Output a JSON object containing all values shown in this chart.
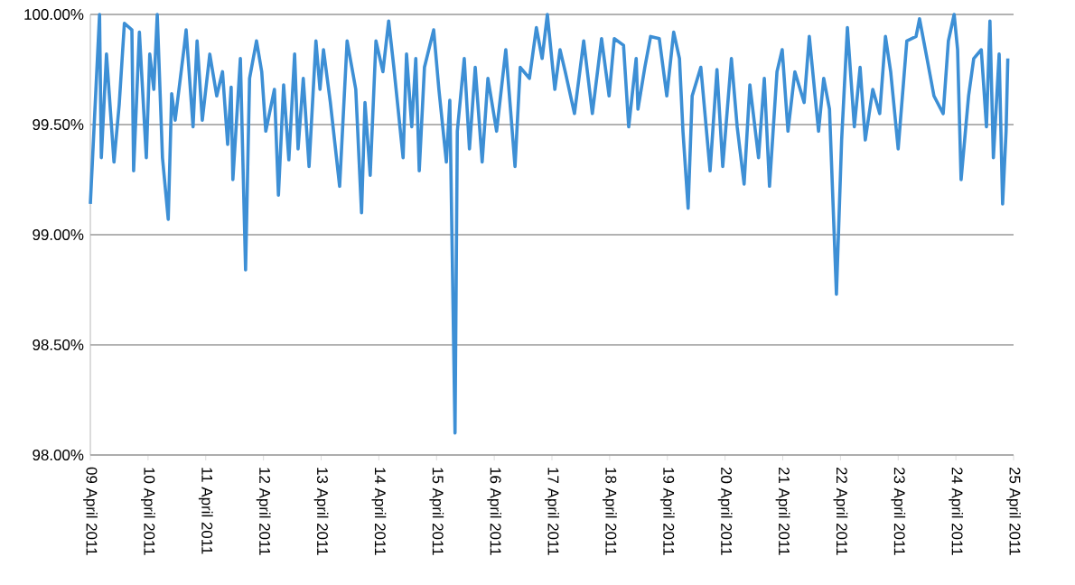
{
  "chart_data": {
    "type": "line",
    "color": "#3d8fd5",
    "grid": "y",
    "xlim": [
      "2011-04-09",
      "2011-04-25"
    ],
    "ylim": [
      98,
      100
    ],
    "xticks": [
      {
        "value": "2011-04-09",
        "label": "09 April 2011"
      },
      {
        "value": "2011-04-10",
        "label": "10 April 2011"
      },
      {
        "value": "2011-04-11",
        "label": "11 April 2011"
      },
      {
        "value": "2011-04-12",
        "label": "12 April 2011"
      },
      {
        "value": "2011-04-13",
        "label": "13 April 2011"
      },
      {
        "value": "2011-04-14",
        "label": "14 April 2011"
      },
      {
        "value": "2011-04-15",
        "label": "15 April 2011"
      },
      {
        "value": "2011-04-16",
        "label": "16 April 2011"
      },
      {
        "value": "2011-04-17",
        "label": "17 April 2011"
      },
      {
        "value": "2011-04-18",
        "label": "18 April 2011"
      },
      {
        "value": "2011-04-19",
        "label": "19 April 2011"
      },
      {
        "value": "2011-04-20",
        "label": "20 April 2011"
      },
      {
        "value": "2011-04-21",
        "label": "21 April 2011"
      },
      {
        "value": "2011-04-22",
        "label": "22 April 2011"
      },
      {
        "value": "2011-04-23",
        "label": "23 April 2011"
      },
      {
        "value": "2011-04-24",
        "label": "24 April 2011"
      },
      {
        "value": "2011-04-25",
        "label": "25 April 2011"
      }
    ],
    "yticks": [
      {
        "value": 98,
        "label": "98.00%"
      },
      {
        "value": 98.5,
        "label": "98.50%"
      },
      {
        "value": 99,
        "label": "99.00%"
      },
      {
        "value": 99.5,
        "label": "99.50%"
      },
      {
        "value": 100,
        "label": "100.00%"
      }
    ],
    "x": [
      "2011-04-09T00:00",
      "2011-04-09T03:50",
      "2011-04-09T04:34",
      "2011-04-09T06:43",
      "2011-04-09T09:50",
      "2011-04-09T12:00",
      "2011-04-09T14:10",
      "2011-04-09T17:17",
      "2011-04-09T18:00",
      "2011-04-09T20:24",
      "2011-04-09T23:17",
      "2011-04-10T00:43",
      "2011-04-10T02:24",
      "2011-04-10T03:50",
      "2011-04-10T06:00",
      "2011-04-10T08:24",
      "2011-04-10T09:50",
      "2011-04-10T11:17",
      "2011-04-10T15:07",
      "2011-04-10T15:50",
      "2011-04-10T18:43",
      "2011-04-10T20:24",
      "2011-04-10T22:34",
      "2011-04-11T01:41",
      "2011-04-11T04:34",
      "2011-04-11T06:58",
      "2011-04-11T09:07",
      "2011-04-11T10:34",
      "2011-04-11T11:17",
      "2011-04-11T14:24",
      "2011-04-11T16:34",
      "2011-04-11T18:14",
      "2011-04-11T21:07",
      "2011-04-11T23:17",
      "2011-04-12T00:58",
      "2011-04-12T04:34",
      "2011-04-12T06:14",
      "2011-04-12T08:24",
      "2011-04-12T10:34",
      "2011-04-12T12:58",
      "2011-04-12T14:24",
      "2011-04-12T16:34",
      "2011-04-12T18:58",
      "2011-04-12T21:50",
      "2011-04-12T23:31",
      "2011-04-13T00:58",
      "2011-04-13T03:50",
      "2011-04-13T07:41",
      "2011-04-13T10:48",
      "2011-04-13T14:24",
      "2011-04-13T16:48",
      "2011-04-13T18:14",
      "2011-04-13T20:24",
      "2011-04-13T22:48",
      "2011-04-14T01:41",
      "2011-04-14T04:05",
      "2011-04-14T06:14",
      "2011-04-14T10:05",
      "2011-04-14T11:31",
      "2011-04-14T13:41",
      "2011-04-14T15:22",
      "2011-04-14T16:48",
      "2011-04-14T18:58",
      "2011-04-14T22:48",
      "2011-04-15T00:58",
      "2011-04-15T04:05",
      "2011-04-15T05:31",
      "2011-04-15T07:41",
      "2011-04-15T08:38",
      "2011-04-15T11:31",
      "2011-04-15T13:41",
      "2011-04-15T16:05",
      "2011-04-15T18:58",
      "2011-04-15T21:22",
      "2011-04-16T00:58",
      "2011-04-16T04:48",
      "2011-04-16T08:38",
      "2011-04-16T10:48",
      "2011-04-16T14:38",
      "2011-04-16T17:31",
      "2011-04-16T19:55",
      "2011-04-16T22:05",
      "2011-04-17T01:12",
      "2011-04-17T03:22",
      "2011-04-17T05:31",
      "2011-04-17T09:22",
      "2011-04-17T13:12",
      "2011-04-17T16:48",
      "2011-04-17T20:38",
      "2011-04-17T23:46",
      "2011-04-18T01:55",
      "2011-04-18T05:46",
      "2011-04-18T07:55",
      "2011-04-18T11:02",
      "2011-04-18T11:46",
      "2011-04-18T14:38",
      "2011-04-18T17:02",
      "2011-04-18T20:38",
      "2011-04-18T23:46",
      "2011-04-19T02:38",
      "2011-04-19T05:02",
      "2011-04-19T06:29",
      "2011-04-19T08:38",
      "2011-04-19T10:19",
      "2011-04-19T13:55",
      "2011-04-19T17:46",
      "2011-04-19T20:38",
      "2011-04-19T23:02",
      "2011-04-20T02:38",
      "2011-04-20T05:02",
      "2011-04-20T07:55",
      "2011-04-20T10:19",
      "2011-04-20T13:55",
      "2011-04-20T16:19",
      "2011-04-20T18:29",
      "2011-04-20T21:36",
      "2011-04-20T23:46",
      "2011-04-21T02:10",
      "2011-04-21T05:02",
      "2011-04-21T08:53",
      "2011-04-21T11:02",
      "2011-04-21T14:53",
      "2011-04-21T17:02",
      "2011-04-21T19:26",
      "2011-04-21T22:19",
      "2011-04-22T00:29",
      "2011-04-22T02:53",
      "2011-04-22T05:46",
      "2011-04-22T08:10",
      "2011-04-22T10:19",
      "2011-04-22T13:26",
      "2011-04-22T16:19",
      "2011-04-22T18:43",
      "2011-04-22T20:53",
      "2011-04-23T00:00",
      "2011-04-23T03:36",
      "2011-04-23T07:26",
      "2011-04-23T08:53",
      "2011-04-23T12:00",
      "2011-04-23T14:53",
      "2011-04-23T18:43",
      "2011-04-23T20:53",
      "2011-04-23T23:17",
      "2011-04-24T00:43",
      "2011-04-24T02:10",
      "2011-04-24T05:17",
      "2011-04-24T07:26",
      "2011-04-24T10:34",
      "2011-04-24T12:43",
      "2011-04-24T14:10",
      "2011-04-24T15:36",
      "2011-04-24T18:00",
      "2011-04-24T19:26",
      "2011-04-24T20:53",
      "2011-04-24T21:36"
    ],
    "values": [
      99.14,
      100.0,
      99.35,
      99.82,
      99.33,
      99.59,
      99.96,
      99.93,
      99.29,
      99.92,
      99.35,
      99.82,
      99.66,
      100.0,
      99.35,
      99.07,
      99.64,
      99.52,
      99.86,
      99.93,
      99.49,
      99.88,
      99.52,
      99.82,
      99.63,
      99.74,
      99.41,
      99.67,
      99.25,
      99.8,
      98.84,
      99.71,
      99.88,
      99.74,
      99.47,
      99.66,
      99.18,
      99.68,
      99.34,
      99.82,
      99.39,
      99.71,
      99.31,
      99.88,
      99.66,
      99.84,
      99.6,
      99.22,
      99.88,
      99.66,
      99.1,
      99.6,
      99.27,
      99.88,
      99.74,
      99.97,
      99.76,
      99.35,
      99.82,
      99.49,
      99.8,
      99.29,
      99.76,
      99.93,
      99.66,
      99.33,
      99.61,
      98.1,
      99.47,
      99.8,
      99.39,
      99.76,
      99.33,
      99.71,
      99.47,
      99.84,
      99.31,
      99.76,
      99.71,
      99.94,
      99.8,
      100.0,
      99.66,
      99.84,
      99.74,
      99.55,
      99.88,
      99.55,
      99.89,
      99.63,
      99.89,
      99.86,
      99.49,
      99.8,
      99.57,
      99.76,
      99.9,
      99.89,
      99.63,
      99.92,
      99.8,
      99.47,
      99.12,
      99.63,
      99.76,
      99.29,
      99.75,
      99.31,
      99.8,
      99.49,
      99.23,
      99.68,
      99.35,
      99.71,
      99.22,
      99.74,
      99.84,
      99.47,
      99.74,
      99.6,
      99.9,
      99.47,
      99.71,
      99.57,
      98.73,
      99.43,
      99.94,
      99.49,
      99.76,
      99.43,
      99.66,
      99.55,
      99.9,
      99.74,
      99.39,
      99.88,
      99.9,
      99.98,
      99.8,
      99.63,
      99.55,
      99.88,
      100.0,
      99.84,
      99.25,
      99.63,
      99.8,
      99.84,
      99.49,
      99.97,
      99.35,
      99.82,
      99.14,
      99.47,
      99.8
    ]
  }
}
